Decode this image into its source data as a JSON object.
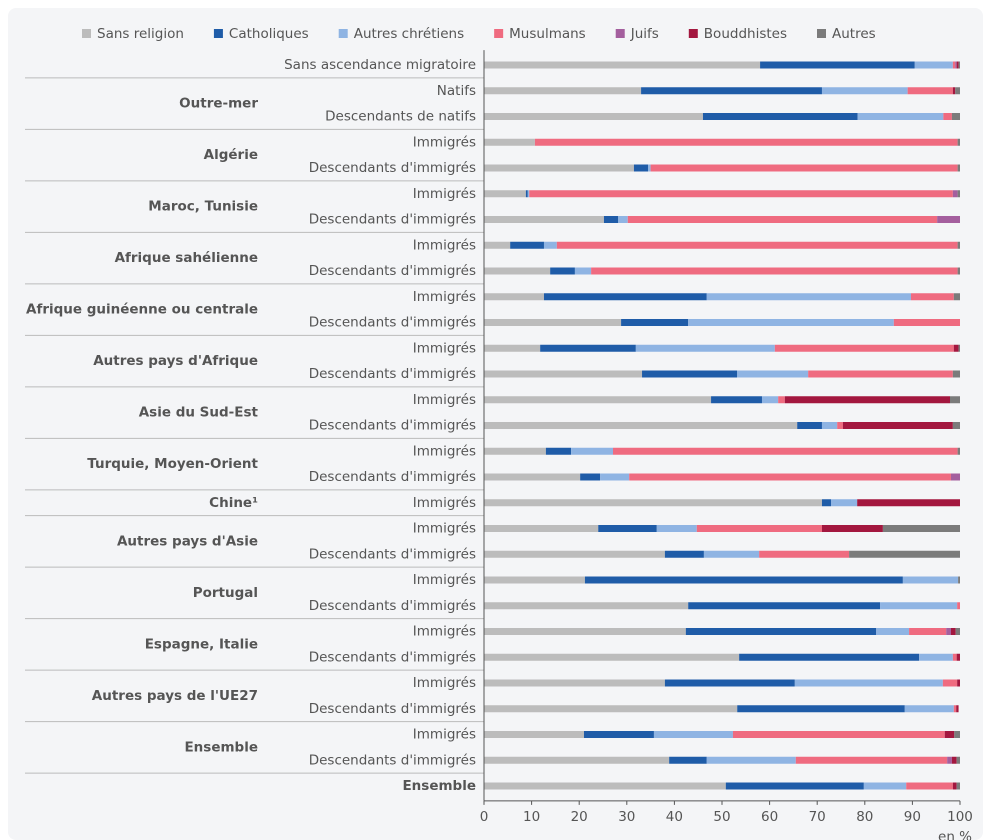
{
  "chart_data": {
    "type": "stacked-bar-horizontal",
    "series": [
      {
        "name": "Sans religion",
        "color": "#bcbcbc",
        "values": [
          58,
          33,
          46,
          10.7,
          31.5,
          8.8,
          25.2,
          5.5,
          13.9,
          12.6,
          28.8,
          11.8,
          33.2,
          47.7,
          65.8,
          13,
          20.2,
          71,
          24,
          38,
          21.2,
          42.9,
          42.4,
          53.6,
          38,
          53.2,
          21,
          38.9,
          50.8
        ]
      },
      {
        "name": "Catholiques",
        "color": "#1f5ca8",
        "values": [
          32.5,
          38,
          32.5,
          0,
          3,
          0.4,
          3,
          7.1,
          5.2,
          34.2,
          14.1,
          20.1,
          20,
          10.7,
          5.2,
          5.3,
          4.2,
          1.9,
          12.3,
          8.2,
          66.8,
          40.3,
          40,
          37.8,
          27.3,
          35.2,
          14.7,
          7.9,
          29
        ]
      },
      {
        "name": "Autres chrétiens",
        "color": "#8fb4e3",
        "values": [
          8,
          18,
          18,
          0,
          0.5,
          0.3,
          2,
          2.7,
          3.4,
          42.9,
          43.2,
          29.2,
          14.9,
          3.4,
          3.2,
          8.8,
          6.1,
          5.5,
          8.4,
          11.6,
          11.6,
          16.2,
          6.9,
          7.1,
          31.1,
          10.3,
          16.6,
          18.7,
          8.9
        ]
      },
      {
        "name": "Musulmans",
        "color": "#ef6b80",
        "values": [
          0.5,
          9.5,
          1.8,
          88.8,
          64.5,
          89,
          65,
          84.2,
          77,
          9,
          13.9,
          37.6,
          30.4,
          1.4,
          1.2,
          72.4,
          67.6,
          0,
          26.3,
          18.9,
          0,
          0.6,
          7.8,
          0.8,
          3,
          0.5,
          44.5,
          31.8,
          9.8
        ]
      },
      {
        "name": "Juifs",
        "color": "#a45f9e",
        "values": [
          0.3,
          0,
          0,
          0,
          0,
          1,
          4.8,
          0,
          0,
          0,
          0,
          0,
          0,
          0,
          0,
          0,
          1.9,
          0,
          0,
          0,
          0,
          0,
          1,
          0,
          0,
          0,
          0,
          1,
          0
        ]
      },
      {
        "name": "Bouddhistes",
        "color": "#a3173f",
        "values": [
          0.4,
          0.5,
          0,
          0,
          0,
          0,
          0,
          0,
          0,
          0,
          0,
          1,
          0,
          34.7,
          23.1,
          0,
          0,
          21.6,
          12.8,
          0,
          0,
          0,
          1,
          0.7,
          0.6,
          0.5,
          2,
          1,
          0.8
        ]
      },
      {
        "name": "Autres",
        "color": "#7b7b7b",
        "values": [
          0.3,
          1,
          1.7,
          0.5,
          0.5,
          0.5,
          0,
          0.5,
          0.5,
          1.3,
          0,
          0.3,
          1.5,
          2.1,
          1.5,
          0.5,
          0,
          0,
          16.2,
          23.3,
          0.4,
          0,
          0.9,
          0,
          0,
          0,
          1.2,
          0.7,
          0.7
        ]
      }
    ],
    "groups": [
      {
        "name": null,
        "categories": [
          "Sans ascendance migratoire"
        ]
      },
      {
        "name": "Outre-mer",
        "categories": [
          "Natifs",
          "Descendants de natifs"
        ]
      },
      {
        "name": "Algérie",
        "categories": [
          "Immigrés",
          "Descendants d'immigrés"
        ]
      },
      {
        "name": "Maroc, Tunisie",
        "categories": [
          "Immigrés",
          "Descendants d'immigrés"
        ]
      },
      {
        "name": "Afrique sahélienne",
        "categories": [
          "Immigrés",
          "Descendants d'immigrés"
        ]
      },
      {
        "name": "Afrique guinéenne ou centrale",
        "categories": [
          "Immigrés",
          "Descendants d'immigrés"
        ]
      },
      {
        "name": "Autres pays d'Afrique",
        "categories": [
          "Immigrés",
          "Descendants d'immigrés"
        ]
      },
      {
        "name": "Asie du Sud-Est",
        "categories": [
          "Immigrés",
          "Descendants d'immigrés"
        ]
      },
      {
        "name": "Turquie, Moyen-Orient",
        "categories": [
          "Immigrés",
          "Descendants d'immigrés"
        ]
      },
      {
        "name": "Chine¹",
        "categories": [
          "Immigrés"
        ]
      },
      {
        "name": "Autres pays d'Asie",
        "categories": [
          "Immigrés",
          "Descendants d'immigrés"
        ]
      },
      {
        "name": "Portugal",
        "categories": [
          "Immigrés",
          "Descendants d'immigrés"
        ]
      },
      {
        "name": "Espagne, Italie",
        "categories": [
          "Immigrés",
          "Descendants d'immigrés"
        ]
      },
      {
        "name": "Autres pays de l'UE27",
        "categories": [
          "Immigrés",
          "Descendants d'immigrés"
        ]
      },
      {
        "name": "Ensemble",
        "categories": [
          "Immigrés",
          "Descendants d'immigrés"
        ]
      },
      {
        "name": null,
        "categories": [
          "Ensemble"
        ]
      }
    ],
    "xlim": [
      0,
      100
    ],
    "xticks": [
      0,
      10,
      20,
      30,
      40,
      50,
      60,
      70,
      80,
      90,
      100
    ],
    "xlabel": "en %",
    "legend": "top"
  }
}
